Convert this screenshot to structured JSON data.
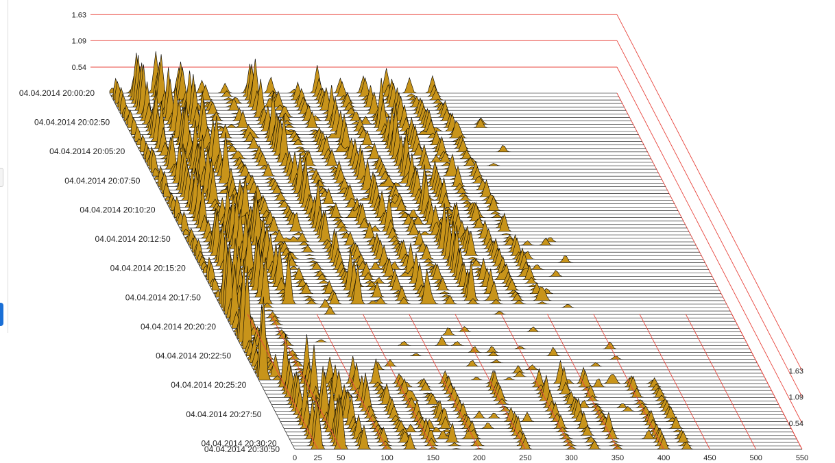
{
  "chart_data": {
    "type": "waterfall-3d",
    "title": "",
    "xlabel": "",
    "ylabel": "",
    "zlabel": "",
    "x_ticks": [
      0,
      25,
      50,
      100,
      150,
      200,
      250,
      300,
      350,
      400,
      450,
      500,
      550
    ],
    "xlim": [
      0,
      550
    ],
    "z_ticks": [
      "0.54",
      "1.09",
      "1.63"
    ],
    "zlim": [
      0,
      1.63
    ],
    "time_labels": [
      "04.04.2014 20:00:20",
      "04.04.2014 20:02:50",
      "04.04.2014 20:05:20",
      "04.04.2014 20:07:50",
      "04.04.2014 20:10:20",
      "04.04.2014 20:12:50",
      "04.04.2014 20:15:20",
      "04.04.2014 20:17:50",
      "04.04.2014 20:20:20",
      "04.04.2014 20:22:50",
      "04.04.2014 20:25:20",
      "04.04.2014 20:27:50",
      "04.04.2014 20:30:20",
      "04.04.2014 20:30:50"
    ],
    "colors": {
      "fill": "#c8941a",
      "fill_dark": "#6e4e0c",
      "line": "#000000",
      "grid": "#e8443c"
    },
    "phase_1": {
      "time_range": [
        "04.04.2014 20:00:20",
        "04.04.2014 20:18:30"
      ],
      "peaks": [
        {
          "x": 3,
          "amp": 0.45
        },
        {
          "x": 25,
          "amp": 1.0
        },
        {
          "x": 50,
          "amp": 1.0
        },
        {
          "x": 75,
          "amp": 1.0
        },
        {
          "x": 100,
          "amp": 0.3
        },
        {
          "x": 125,
          "amp": 0.25
        },
        {
          "x": 150,
          "amp": 1.0
        },
        {
          "x": 175,
          "amp": 0.3
        },
        {
          "x": 200,
          "amp": 0.4
        },
        {
          "x": 225,
          "amp": 0.7
        },
        {
          "x": 250,
          "amp": 0.3
        },
        {
          "x": 275,
          "amp": 1.0
        },
        {
          "x": 300,
          "amp": 0.5
        },
        {
          "x": 325,
          "amp": 0.4
        },
        {
          "x": 350,
          "amp": 0.35
        }
      ]
    },
    "phase_2": {
      "time_range": [
        "04.04.2014 20:18:30",
        "04.04.2014 20:25:00"
      ],
      "peaks": [
        {
          "x": 5,
          "amp": 1.6
        },
        {
          "x": 20,
          "amp": 0.45
        },
        {
          "x": 50,
          "amp": 0.15
        }
      ]
    },
    "phase_3": {
      "time_range": [
        "04.04.2014 20:25:00",
        "04.04.2014 20:30:50"
      ],
      "peaks": [
        {
          "x": 25,
          "amp": 1.0
        },
        {
          "x": 50,
          "amp": 1.0
        },
        {
          "x": 75,
          "amp": 0.6
        },
        {
          "x": 100,
          "amp": 0.7
        },
        {
          "x": 125,
          "amp": 0.5
        },
        {
          "x": 150,
          "amp": 0.4
        },
        {
          "x": 175,
          "amp": 0.3
        },
        {
          "x": 200,
          "amp": 0.3
        },
        {
          "x": 250,
          "amp": 0.4
        },
        {
          "x": 300,
          "amp": 0.5
        },
        {
          "x": 325,
          "amp": 0.45
        },
        {
          "x": 350,
          "amp": 0.4
        },
        {
          "x": 400,
          "amp": 0.3
        },
        {
          "x": 425,
          "amp": 0.25
        }
      ]
    }
  }
}
